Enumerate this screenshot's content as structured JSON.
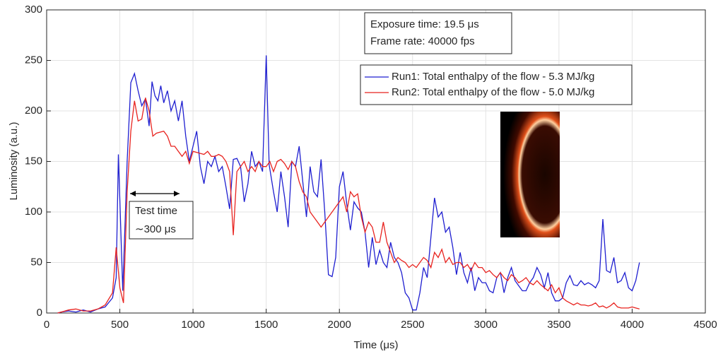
{
  "chart_data": {
    "type": "line",
    "xlabel": "Time (μs)",
    "ylabel": "Luminosity (a.u.)",
    "xlim": [
      0,
      4500
    ],
    "ylim": [
      0,
      300
    ],
    "xticks": [
      0,
      500,
      1000,
      1500,
      2000,
      2500,
      3000,
      3500,
      4000,
      4500
    ],
    "yticks": [
      0,
      50,
      100,
      150,
      200,
      250,
      300
    ],
    "grid": true,
    "legend": "upper right",
    "annotations": [
      "Exposure time: 19.5 μs",
      "Frame rate: 40000 fps",
      "Test time",
      "∼300 μs"
    ],
    "series": [
      {
        "name": "Run1: Total enthalpy of the flow - 5.3 MJ/kg",
        "color": "#1f1fd0",
        "x": [
          75,
          100,
          150,
          200,
          250,
          300,
          350,
          400,
          450,
          475,
          490,
          520,
          550,
          575,
          600,
          625,
          650,
          675,
          700,
          720,
          740,
          760,
          780,
          800,
          825,
          850,
          875,
          900,
          925,
          950,
          975,
          1000,
          1025,
          1050,
          1075,
          1100,
          1125,
          1150,
          1175,
          1200,
          1225,
          1250,
          1275,
          1300,
          1325,
          1350,
          1375,
          1400,
          1425,
          1450,
          1475,
          1500,
          1520,
          1550,
          1575,
          1600,
          1625,
          1650,
          1675,
          1700,
          1725,
          1750,
          1775,
          1800,
          1825,
          1850,
          1875,
          1900,
          1925,
          1950,
          1975,
          2000,
          2025,
          2050,
          2075,
          2100,
          2125,
          2150,
          2175,
          2200,
          2225,
          2250,
          2275,
          2300,
          2325,
          2350,
          2375,
          2400,
          2425,
          2450,
          2475,
          2500,
          2525,
          2550,
          2575,
          2600,
          2625,
          2650,
          2675,
          2700,
          2725,
          2750,
          2775,
          2800,
          2825,
          2850,
          2875,
          2900,
          2925,
          2950,
          2975,
          3000,
          3025,
          3050,
          3075,
          3100,
          3125,
          3150,
          3175,
          3200,
          3225,
          3250,
          3275,
          3300,
          3325,
          3350,
          3375,
          3400,
          3425,
          3450,
          3475,
          3500,
          3525,
          3550,
          3575,
          3600,
          3625,
          3650,
          3675,
          3700,
          3725,
          3750,
          3775,
          3800,
          3825,
          3850,
          3875,
          3900,
          3925,
          3950,
          3975,
          4000,
          4025,
          4050
        ],
        "values": [
          0,
          1,
          2,
          1,
          3,
          1,
          4,
          6,
          15,
          35,
          157,
          22,
          150,
          228,
          237,
          220,
          205,
          212,
          185,
          229,
          215,
          210,
          225,
          208,
          220,
          200,
          210,
          190,
          210,
          175,
          150,
          165,
          180,
          145,
          128,
          150,
          145,
          155,
          140,
          145,
          125,
          103,
          152,
          153,
          145,
          110,
          128,
          160,
          145,
          150,
          140,
          255,
          147,
          120,
          100,
          140,
          115,
          85,
          150,
          145,
          165,
          130,
          95,
          145,
          120,
          115,
          152,
          100,
          38,
          36,
          55,
          125,
          140,
          108,
          82,
          110,
          104,
          100,
          80,
          45,
          75,
          48,
          62,
          50,
          45,
          70,
          55,
          50,
          40,
          20,
          15,
          3,
          3,
          20,
          45,
          35,
          75,
          114,
          95,
          100,
          80,
          85,
          65,
          38,
          60,
          40,
          30,
          45,
          22,
          35,
          30,
          30,
          22,
          20,
          35,
          40,
          20,
          35,
          45,
          32,
          27,
          22,
          22,
          30,
          35,
          45,
          38,
          25,
          40,
          20,
          12,
          12,
          15,
          30,
          37,
          28,
          27,
          32,
          28,
          30,
          28,
          25,
          32,
          93,
          42,
          40,
          55,
          30,
          32,
          40,
          25,
          22,
          32,
          50
        ]
      },
      {
        "name": "Run2: Total enthalpy of the flow - 5.0 MJ/kg",
        "color": "#e8231f",
        "x": [
          75,
          100,
          150,
          200,
          250,
          300,
          350,
          400,
          450,
          475,
          500,
          525,
          550,
          575,
          600,
          625,
          650,
          675,
          700,
          725,
          750,
          800,
          825,
          850,
          875,
          900,
          925,
          950,
          975,
          1000,
          1050,
          1075,
          1100,
          1125,
          1150,
          1175,
          1200,
          1225,
          1250,
          1275,
          1300,
          1325,
          1350,
          1375,
          1400,
          1425,
          1450,
          1475,
          1500,
          1525,
          1550,
          1575,
          1600,
          1625,
          1650,
          1675,
          1700,
          1725,
          1750,
          1775,
          1800,
          1825,
          1850,
          1875,
          1900,
          1925,
          1950,
          1975,
          2000,
          2025,
          2050,
          2075,
          2100,
          2125,
          2150,
          2175,
          2200,
          2225,
          2250,
          2275,
          2300,
          2325,
          2350,
          2375,
          2400,
          2425,
          2450,
          2475,
          2500,
          2525,
          2550,
          2575,
          2600,
          2625,
          2650,
          2675,
          2700,
          2725,
          2750,
          2775,
          2800,
          2825,
          2850,
          2875,
          2900,
          2925,
          2950,
          2975,
          3000,
          3025,
          3050,
          3075,
          3100,
          3125,
          3150,
          3175,
          3200,
          3225,
          3250,
          3275,
          3300,
          3325,
          3350,
          3375,
          3400,
          3425,
          3450,
          3475,
          3500,
          3525,
          3550,
          3575,
          3600,
          3625,
          3650,
          3675,
          3700,
          3725,
          3750,
          3775,
          3800,
          3825,
          3850,
          3875,
          3900,
          3925,
          3950,
          3975,
          4000,
          4025,
          4050
        ],
        "values": [
          0,
          1,
          3,
          4,
          2,
          2,
          4,
          8,
          20,
          65,
          25,
          10,
          120,
          180,
          210,
          190,
          192,
          213,
          200,
          175,
          178,
          180,
          175,
          165,
          165,
          160,
          155,
          160,
          148,
          160,
          158,
          157,
          160,
          155,
          155,
          157,
          155,
          150,
          140,
          77,
          140,
          145,
          150,
          140,
          145,
          140,
          150,
          145,
          145,
          150,
          140,
          150,
          152,
          148,
          142,
          150,
          145,
          130,
          120,
          115,
          100,
          95,
          90,
          85,
          90,
          95,
          100,
          105,
          110,
          115,
          100,
          120,
          115,
          118,
          95,
          80,
          90,
          85,
          70,
          70,
          90,
          70,
          60,
          50,
          55,
          52,
          50,
          45,
          48,
          45,
          50,
          55,
          52,
          45,
          60,
          55,
          63,
          50,
          55,
          48,
          50,
          50,
          45,
          48,
          42,
          50,
          45,
          45,
          40,
          42,
          38,
          35,
          40,
          35,
          32,
          38,
          35,
          30,
          32,
          35,
          30,
          28,
          32,
          28,
          25,
          22,
          28,
          20,
          25,
          15,
          12,
          10,
          8,
          10,
          8,
          8,
          7,
          8,
          10,
          6,
          7,
          5,
          7,
          10,
          6,
          5,
          5,
          5,
          6,
          5,
          4
        ]
      }
    ]
  }
}
